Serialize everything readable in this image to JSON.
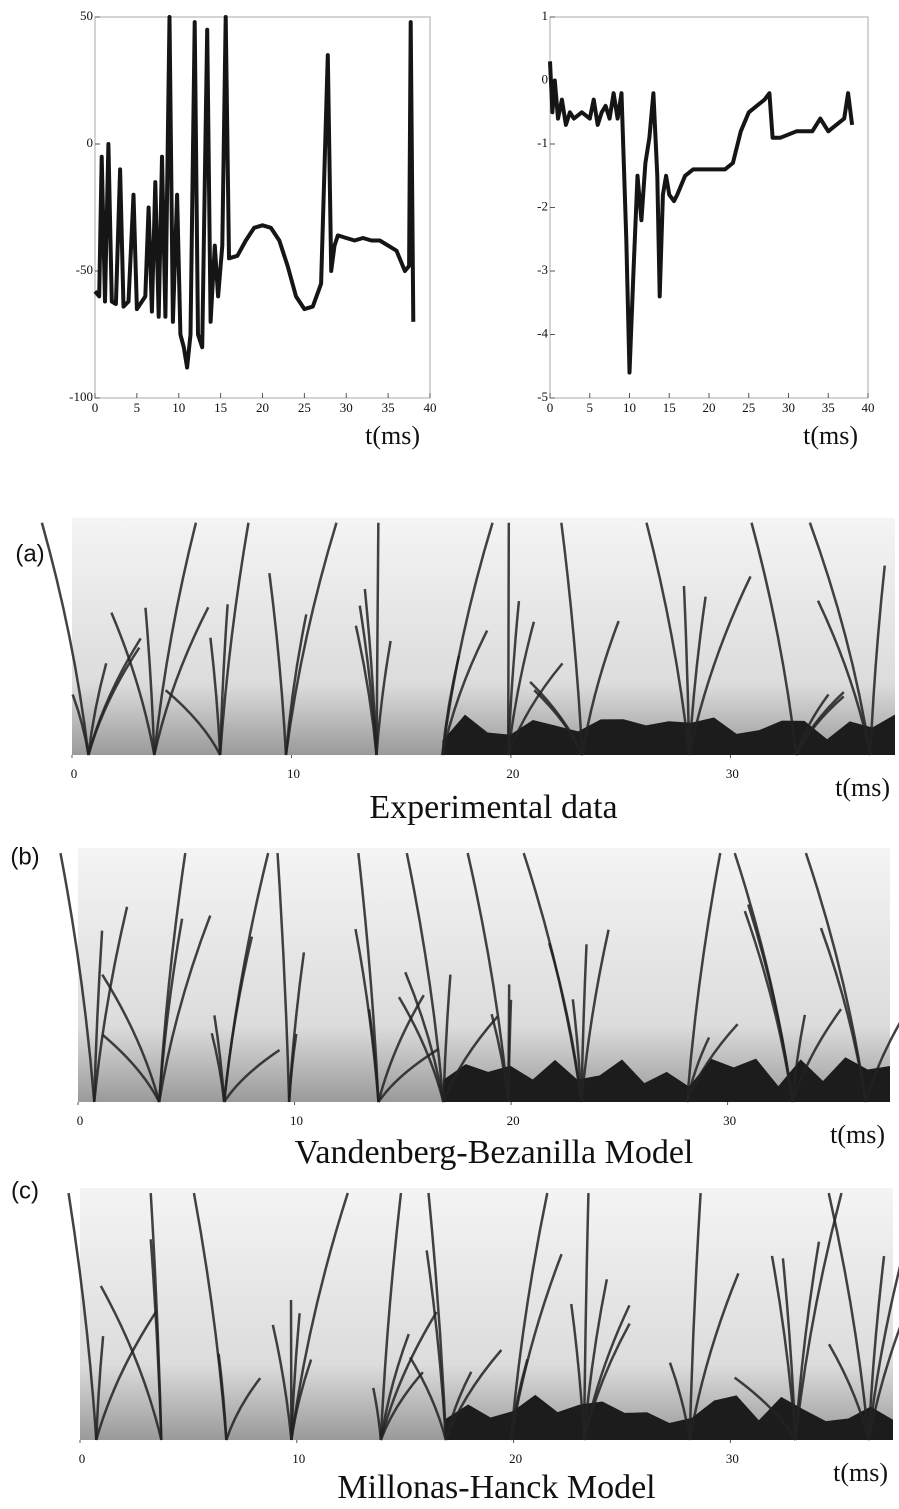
{
  "chart_data": [
    {
      "type": "line",
      "xlabel": "t(ms)",
      "xlim": [
        0,
        40
      ],
      "ylim": [
        -100,
        50
      ],
      "xticks": [
        0,
        5,
        10,
        15,
        20,
        25,
        30,
        35,
        40
      ],
      "yticks": [
        -100,
        -50,
        0,
        50
      ],
      "x": [
        0,
        0.5,
        0.8,
        1.2,
        1.6,
        2,
        2.5,
        3,
        3.4,
        4,
        4.6,
        5,
        6,
        6.4,
        6.8,
        7.2,
        7.6,
        8,
        8.4,
        8.9,
        9.3,
        9.8,
        10.2,
        10.6,
        11,
        11.4,
        11.9,
        12.3,
        12.8,
        13.4,
        13.8,
        14.3,
        14.7,
        15.2,
        15.6,
        16,
        17,
        18,
        19,
        20,
        21,
        22,
        23,
        24,
        25,
        26,
        27,
        27.8,
        28.2,
        28.6,
        29,
        30,
        31,
        32,
        33,
        34,
        35,
        36,
        37,
        37.5,
        37.7,
        38
      ],
      "series": [
        {
          "color": "#151515",
          "values": [
            -58,
            -60,
            -5,
            -62,
            0,
            -62,
            -63,
            -10,
            -64,
            -62,
            -20,
            -65,
            -60,
            -25,
            -66,
            -15,
            -68,
            -5,
            -68,
            50,
            -70,
            -20,
            -75,
            -80,
            -88,
            -75,
            48,
            -75,
            -80,
            45,
            -70,
            -40,
            -60,
            -40,
            50,
            -45,
            -44,
            -38,
            -33,
            -32,
            -33,
            -38,
            -48,
            -60,
            -65,
            -64,
            -55,
            35,
            -50,
            -40,
            -36,
            -37,
            -38,
            -37,
            -38,
            -38,
            -40,
            -42,
            -50,
            -48,
            48,
            -70
          ]
        }
      ]
    },
    {
      "type": "line",
      "xlabel": "t(ms)",
      "xlim": [
        0,
        40
      ],
      "ylim": [
        -5,
        1
      ],
      "xticks": [
        0,
        5,
        10,
        15,
        20,
        25,
        30,
        35,
        40
      ],
      "yticks": [
        -5,
        -4,
        -3,
        -2,
        -1,
        0,
        1
      ],
      "x": [
        0,
        0.3,
        0.6,
        1,
        1.5,
        2,
        2.5,
        3,
        4,
        5,
        5.5,
        6,
        6.5,
        7,
        7.5,
        8,
        8.5,
        9,
        9.6,
        10,
        10.5,
        11,
        11.5,
        12,
        12.5,
        13,
        13.5,
        13.8,
        14.2,
        14.6,
        15,
        15.6,
        16,
        17,
        18,
        20,
        22,
        23,
        24,
        25,
        26,
        27,
        27.6,
        28,
        29,
        31,
        33,
        34,
        35,
        36,
        37,
        37.5,
        38
      ],
      "series": [
        {
          "color": "#151515",
          "values": [
            0.3,
            -0.5,
            0,
            -0.6,
            -0.3,
            -0.7,
            -0.5,
            -0.6,
            -0.5,
            -0.6,
            -0.3,
            -0.7,
            -0.5,
            -0.4,
            -0.6,
            -0.2,
            -0.6,
            -0.2,
            -2.5,
            -4.6,
            -3,
            -1.5,
            -2.2,
            -1.3,
            -0.9,
            -0.2,
            -1.5,
            -3.4,
            -1.8,
            -1.5,
            -1.8,
            -1.9,
            -1.8,
            -1.5,
            -1.4,
            -1.4,
            -1.4,
            -1.3,
            -0.8,
            -0.5,
            -0.4,
            -0.3,
            -0.2,
            -0.9,
            -0.9,
            -0.8,
            -0.8,
            -0.6,
            -0.8,
            -0.7,
            -0.6,
            -0.2,
            -0.7
          ]
        }
      ]
    },
    {
      "type": "image",
      "label": "(a)",
      "title": "Experimental data",
      "xlabel": "t(ms)",
      "xlim": [
        0,
        37.5
      ],
      "xticks": [
        0,
        10,
        20,
        30
      ]
    },
    {
      "type": "image",
      "label": "(b)",
      "title": "Vandenberg-Bezanilla Model",
      "xlabel": "t(ms)",
      "xlim": [
        0,
        37.5
      ],
      "xticks": [
        0,
        10,
        20,
        30
      ]
    },
    {
      "type": "image",
      "label": "(c)",
      "title": "Millonas-Hanck Model",
      "xlabel": "t(ms)",
      "xlim": [
        0,
        37.5
      ],
      "xticks": [
        0,
        10,
        20,
        30
      ]
    }
  ]
}
